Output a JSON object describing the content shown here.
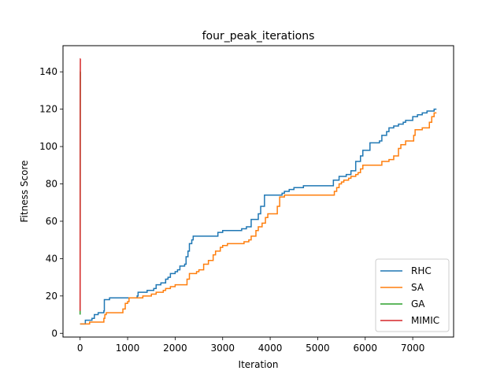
{
  "chart_data": {
    "type": "line",
    "title": "four_peak_iterations",
    "xlabel": "Iteration",
    "ylabel": "Fitness Score",
    "xlim": [
      -360,
      7860
    ],
    "ylim": [
      -2,
      154
    ],
    "xticks": [
      0,
      1000,
      2000,
      3000,
      4000,
      5000,
      6000,
      7000
    ],
    "yticks": [
      0,
      20,
      40,
      60,
      80,
      100,
      120,
      140
    ],
    "grid": false,
    "legend_position": "lower-right",
    "series": [
      {
        "name": "RHC",
        "color": "#1f77b4",
        "step": true,
        "points": [
          [
            0,
            5
          ],
          [
            100,
            5
          ],
          [
            110,
            7
          ],
          [
            250,
            8
          ],
          [
            300,
            10
          ],
          [
            380,
            11
          ],
          [
            500,
            12
          ],
          [
            510,
            18
          ],
          [
            600,
            18
          ],
          [
            620,
            19
          ],
          [
            1000,
            19
          ],
          [
            1100,
            19
          ],
          [
            1200,
            20
          ],
          [
            1220,
            22
          ],
          [
            1400,
            22
          ],
          [
            1410,
            23
          ],
          [
            1550,
            24
          ],
          [
            1600,
            26
          ],
          [
            1700,
            27
          ],
          [
            1800,
            29
          ],
          [
            1850,
            30
          ],
          [
            1900,
            32
          ],
          [
            2000,
            33
          ],
          [
            2050,
            34
          ],
          [
            2100,
            36
          ],
          [
            2200,
            37
          ],
          [
            2230,
            41
          ],
          [
            2270,
            44
          ],
          [
            2300,
            48
          ],
          [
            2350,
            50
          ],
          [
            2380,
            52
          ],
          [
            2700,
            52
          ],
          [
            2900,
            54
          ],
          [
            3000,
            55
          ],
          [
            3400,
            56
          ],
          [
            3500,
            57
          ],
          [
            3600,
            61
          ],
          [
            3750,
            64
          ],
          [
            3800,
            68
          ],
          [
            3880,
            74
          ],
          [
            4200,
            74
          ],
          [
            4250,
            75
          ],
          [
            4300,
            76
          ],
          [
            4400,
            77
          ],
          [
            4500,
            78
          ],
          [
            4700,
            79
          ],
          [
            5300,
            79
          ],
          [
            5330,
            82
          ],
          [
            5450,
            84
          ],
          [
            5600,
            85
          ],
          [
            5700,
            87
          ],
          [
            5800,
            92
          ],
          [
            5900,
            95
          ],
          [
            5950,
            98
          ],
          [
            6100,
            102
          ],
          [
            6300,
            103
          ],
          [
            6350,
            106
          ],
          [
            6450,
            108
          ],
          [
            6500,
            110
          ],
          [
            6600,
            111
          ],
          [
            6700,
            112
          ],
          [
            6800,
            113
          ],
          [
            6850,
            114
          ],
          [
            7000,
            116
          ],
          [
            7100,
            117
          ],
          [
            7200,
            118
          ],
          [
            7300,
            119
          ],
          [
            7450,
            120
          ],
          [
            7500,
            120
          ]
        ]
      },
      {
        "name": "SA",
        "color": "#ff7f0e",
        "step": true,
        "points": [
          [
            0,
            5
          ],
          [
            150,
            5
          ],
          [
            200,
            6
          ],
          [
            450,
            6
          ],
          [
            500,
            8
          ],
          [
            520,
            10
          ],
          [
            550,
            11
          ],
          [
            850,
            11
          ],
          [
            900,
            13
          ],
          [
            950,
            16
          ],
          [
            1000,
            17
          ],
          [
            1030,
            19
          ],
          [
            1300,
            19
          ],
          [
            1320,
            20
          ],
          [
            1500,
            21
          ],
          [
            1600,
            22
          ],
          [
            1750,
            23
          ],
          [
            1800,
            24
          ],
          [
            1900,
            25
          ],
          [
            2000,
            26
          ],
          [
            2200,
            26
          ],
          [
            2250,
            29
          ],
          [
            2300,
            32
          ],
          [
            2450,
            33
          ],
          [
            2500,
            34
          ],
          [
            2600,
            37
          ],
          [
            2700,
            39
          ],
          [
            2800,
            42
          ],
          [
            2850,
            44
          ],
          [
            2950,
            46
          ],
          [
            3000,
            47
          ],
          [
            3100,
            48
          ],
          [
            3400,
            48
          ],
          [
            3450,
            49
          ],
          [
            3550,
            50
          ],
          [
            3600,
            52
          ],
          [
            3700,
            55
          ],
          [
            3750,
            57
          ],
          [
            3830,
            59
          ],
          [
            3900,
            62
          ],
          [
            3950,
            64
          ],
          [
            4100,
            64
          ],
          [
            4150,
            68
          ],
          [
            4200,
            73
          ],
          [
            4300,
            74
          ],
          [
            5300,
            74
          ],
          [
            5350,
            76
          ],
          [
            5400,
            78
          ],
          [
            5450,
            80
          ],
          [
            5500,
            81
          ],
          [
            5550,
            82
          ],
          [
            5650,
            83
          ],
          [
            5700,
            84
          ],
          [
            5800,
            85
          ],
          [
            5850,
            86
          ],
          [
            5900,
            88
          ],
          [
            5950,
            90
          ],
          [
            6300,
            90
          ],
          [
            6350,
            92
          ],
          [
            6500,
            93
          ],
          [
            6600,
            95
          ],
          [
            6700,
            99
          ],
          [
            6750,
            101
          ],
          [
            6850,
            103
          ],
          [
            7000,
            103
          ],
          [
            7020,
            106
          ],
          [
            7050,
            109
          ],
          [
            7200,
            110
          ],
          [
            7300,
            110
          ],
          [
            7350,
            113
          ],
          [
            7400,
            116
          ],
          [
            7450,
            118
          ],
          [
            7500,
            118
          ]
        ]
      },
      {
        "name": "GA",
        "color": "#2ca02c",
        "step": false,
        "points": [
          [
            0,
            10
          ],
          [
            1,
            40
          ],
          [
            2,
            75
          ],
          [
            3,
            105
          ],
          [
            4,
            125
          ],
          [
            5,
            135
          ],
          [
            6,
            140
          ],
          [
            8,
            140
          ]
        ]
      },
      {
        "name": "MIMIC",
        "color": "#d62728",
        "step": false,
        "points": [
          [
            0,
            12
          ],
          [
            1,
            50
          ],
          [
            2,
            90
          ],
          [
            3,
            120
          ],
          [
            4,
            138
          ],
          [
            5,
            145
          ],
          [
            6,
            147
          ],
          [
            8,
            147
          ]
        ]
      }
    ]
  }
}
